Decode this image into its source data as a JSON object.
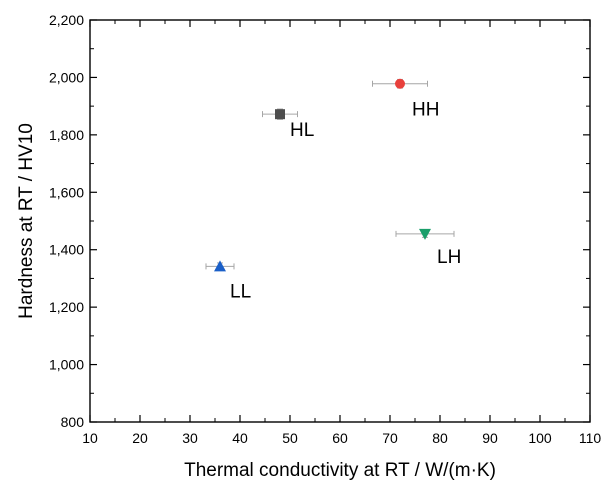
{
  "chart_data": {
    "type": "scatter",
    "title": "",
    "xlabel": "Thermal conductivity at RT / W/(m·K)",
    "ylabel": "Hardness at RT / HV10",
    "xlim": [
      10,
      110
    ],
    "ylim": [
      800,
      2200
    ],
    "xticks": [
      10,
      20,
      30,
      40,
      50,
      60,
      70,
      80,
      90,
      100,
      110
    ],
    "xtick_labels": [
      "10",
      "20",
      "30",
      "40",
      "50",
      "60",
      "70",
      "80",
      "90",
      "100",
      "110"
    ],
    "yticks": [
      800,
      1000,
      1200,
      1400,
      1600,
      1800,
      2000,
      2200
    ],
    "ytick_labels": [
      "800",
      "1,000",
      "1,200",
      "1,400",
      "1,600",
      "1,800",
      "2,000",
      "2,200"
    ],
    "grid": false,
    "legend": "none",
    "points": [
      {
        "label": "HL",
        "x": 48,
        "y": 1872,
        "xerr": 3.5,
        "yerr": 18,
        "marker": "square",
        "color": "#4d4d4d"
      },
      {
        "label": "HH",
        "x": 72,
        "y": 1978,
        "xerr": 5.5,
        "yerr": 15,
        "marker": "circle",
        "color": "#e8403c"
      },
      {
        "label": "LL",
        "x": 36,
        "y": 1342,
        "xerr": 2.8,
        "yerr": 12,
        "marker": "triangle-up",
        "color": "#1a5fc8"
      },
      {
        "label": "LH",
        "x": 77,
        "y": 1455,
        "xerr": 5.8,
        "yerr": 12,
        "marker": "triangle-down",
        "color": "#1a9e6a"
      }
    ]
  }
}
